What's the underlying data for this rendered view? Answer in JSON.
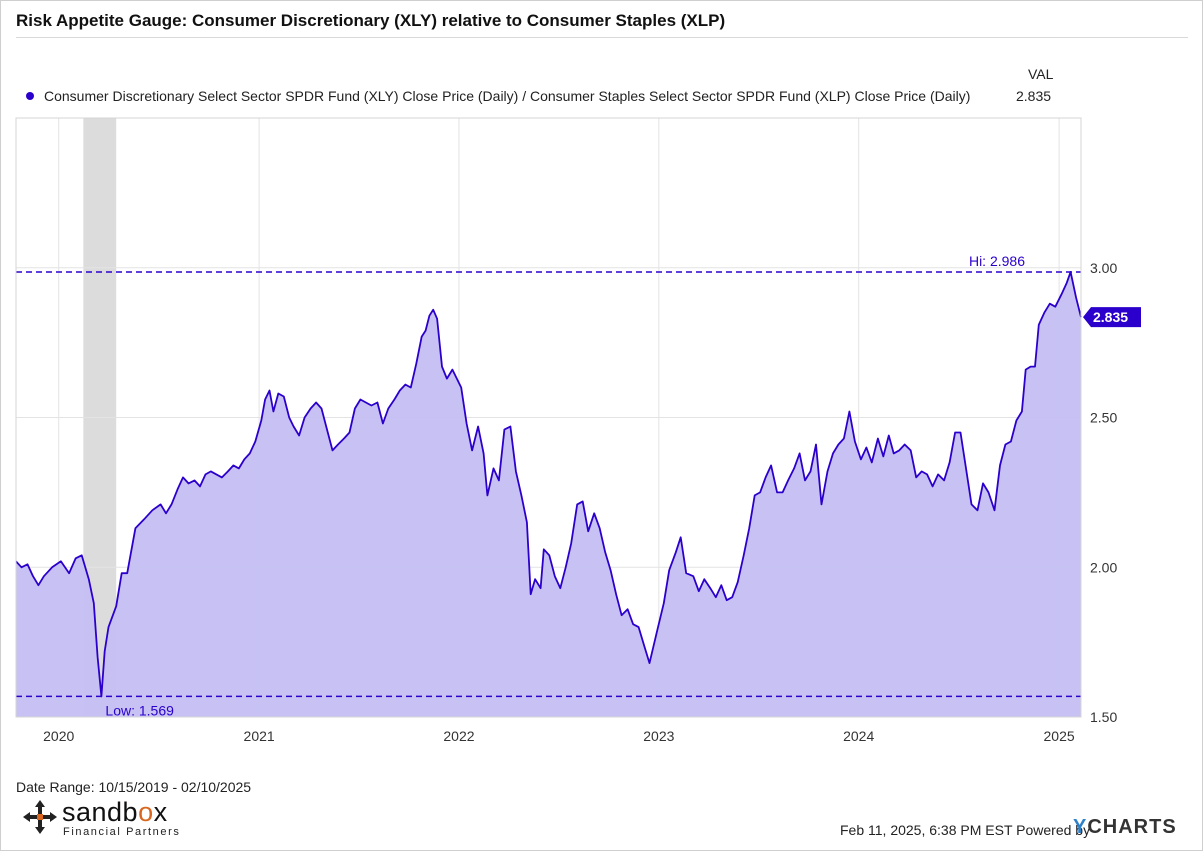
{
  "title": "Risk Appetite Gauge: Consumer Discretionary (XLY) relative to Consumer Staples (XLP)",
  "legend": {
    "header": "VAL",
    "series_label": "Consumer Discretionary Select Sector SPDR Fund (XLY) Close Price (Daily) / Consumer Staples Select Sector SPDR Fund (XLP) Close Price (Daily)",
    "value": "2.835"
  },
  "colors": {
    "line": "#2c00cc",
    "fill": "#c4bff2",
    "recession": "#dcdcdc",
    "grid": "#e3e3e3"
  },
  "chart_data": {
    "type": "area",
    "series": [
      {
        "name": "Consumer Discretionary Select Sector SPDR Fund (XLY) Close Price (Daily) / Consumer Staples Select Sector SPDR Fund (XLP) Close Price (Daily)",
        "points": [
          [
            "2019-10-15",
            2.02
          ],
          [
            "2019-10-25",
            2.0
          ],
          [
            "2019-11-05",
            2.01
          ],
          [
            "2019-11-15",
            1.97
          ],
          [
            "2019-11-25",
            1.94
          ],
          [
            "2019-12-05",
            1.97
          ],
          [
            "2019-12-20",
            2.0
          ],
          [
            "2020-01-05",
            2.02
          ],
          [
            "2020-01-20",
            1.98
          ],
          [
            "2020-02-01",
            2.03
          ],
          [
            "2020-02-12",
            2.04
          ],
          [
            "2020-02-25",
            1.96
          ],
          [
            "2020-03-05",
            1.88
          ],
          [
            "2020-03-12",
            1.7
          ],
          [
            "2020-03-19",
            1.569
          ],
          [
            "2020-03-25",
            1.72
          ],
          [
            "2020-04-01",
            1.8
          ],
          [
            "2020-04-15",
            1.87
          ],
          [
            "2020-04-25",
            1.98
          ],
          [
            "2020-05-05",
            1.98
          ],
          [
            "2020-05-20",
            2.13
          ],
          [
            "2020-06-05",
            2.16
          ],
          [
            "2020-06-20",
            2.19
          ],
          [
            "2020-07-05",
            2.21
          ],
          [
            "2020-07-15",
            2.18
          ],
          [
            "2020-07-25",
            2.21
          ],
          [
            "2020-08-05",
            2.26
          ],
          [
            "2020-08-15",
            2.3
          ],
          [
            "2020-08-25",
            2.28
          ],
          [
            "2020-09-05",
            2.29
          ],
          [
            "2020-09-15",
            2.27
          ],
          [
            "2020-09-25",
            2.31
          ],
          [
            "2020-10-05",
            2.32
          ],
          [
            "2020-10-15",
            2.31
          ],
          [
            "2020-10-25",
            2.3
          ],
          [
            "2020-11-05",
            2.32
          ],
          [
            "2020-11-15",
            2.34
          ],
          [
            "2020-11-25",
            2.33
          ],
          [
            "2020-12-05",
            2.36
          ],
          [
            "2020-12-15",
            2.38
          ],
          [
            "2020-12-25",
            2.42
          ],
          [
            "2021-01-05",
            2.49
          ],
          [
            "2021-01-12",
            2.56
          ],
          [
            "2021-01-20",
            2.59
          ],
          [
            "2021-01-27",
            2.52
          ],
          [
            "2021-02-05",
            2.58
          ],
          [
            "2021-02-15",
            2.57
          ],
          [
            "2021-02-25",
            2.5
          ],
          [
            "2021-03-05",
            2.47
          ],
          [
            "2021-03-15",
            2.44
          ],
          [
            "2021-03-25",
            2.5
          ],
          [
            "2021-04-05",
            2.53
          ],
          [
            "2021-04-15",
            2.55
          ],
          [
            "2021-04-25",
            2.53
          ],
          [
            "2021-05-05",
            2.46
          ],
          [
            "2021-05-15",
            2.39
          ],
          [
            "2021-05-25",
            2.41
          ],
          [
            "2021-06-05",
            2.43
          ],
          [
            "2021-06-15",
            2.45
          ],
          [
            "2021-06-25",
            2.53
          ],
          [
            "2021-07-05",
            2.56
          ],
          [
            "2021-07-15",
            2.55
          ],
          [
            "2021-07-25",
            2.54
          ],
          [
            "2021-08-05",
            2.55
          ],
          [
            "2021-08-15",
            2.48
          ],
          [
            "2021-08-25",
            2.53
          ],
          [
            "2021-09-05",
            2.56
          ],
          [
            "2021-09-15",
            2.59
          ],
          [
            "2021-09-25",
            2.61
          ],
          [
            "2021-10-05",
            2.6
          ],
          [
            "2021-10-15",
            2.68
          ],
          [
            "2021-10-25",
            2.77
          ],
          [
            "2021-11-01",
            2.79
          ],
          [
            "2021-11-08",
            2.84
          ],
          [
            "2021-11-15",
            2.86
          ],
          [
            "2021-11-22",
            2.83
          ],
          [
            "2021-12-01",
            2.67
          ],
          [
            "2021-12-10",
            2.63
          ],
          [
            "2021-12-20",
            2.66
          ],
          [
            "2022-01-05",
            2.6
          ],
          [
            "2022-01-15",
            2.48
          ],
          [
            "2022-01-25",
            2.39
          ],
          [
            "2022-02-05",
            2.47
          ],
          [
            "2022-02-15",
            2.38
          ],
          [
            "2022-02-22",
            2.24
          ],
          [
            "2022-03-05",
            2.33
          ],
          [
            "2022-03-15",
            2.29
          ],
          [
            "2022-03-25",
            2.46
          ],
          [
            "2022-04-05",
            2.47
          ],
          [
            "2022-04-15",
            2.32
          ],
          [
            "2022-04-25",
            2.24
          ],
          [
            "2022-05-05",
            2.15
          ],
          [
            "2022-05-12",
            1.91
          ],
          [
            "2022-05-20",
            1.96
          ],
          [
            "2022-05-30",
            1.93
          ],
          [
            "2022-06-05",
            2.06
          ],
          [
            "2022-06-15",
            2.04
          ],
          [
            "2022-06-25",
            1.97
          ],
          [
            "2022-07-05",
            1.93
          ],
          [
            "2022-07-15",
            2.0
          ],
          [
            "2022-07-25",
            2.08
          ],
          [
            "2022-08-05",
            2.21
          ],
          [
            "2022-08-15",
            2.22
          ],
          [
            "2022-08-25",
            2.12
          ],
          [
            "2022-09-05",
            2.18
          ],
          [
            "2022-09-15",
            2.13
          ],
          [
            "2022-09-25",
            2.05
          ],
          [
            "2022-10-05",
            1.99
          ],
          [
            "2022-10-15",
            1.91
          ],
          [
            "2022-10-25",
            1.84
          ],
          [
            "2022-11-05",
            1.86
          ],
          [
            "2022-11-15",
            1.81
          ],
          [
            "2022-11-25",
            1.8
          ],
          [
            "2022-12-05",
            1.74
          ],
          [
            "2022-12-15",
            1.68
          ],
          [
            "2022-12-28",
            1.78
          ],
          [
            "2023-01-10",
            1.88
          ],
          [
            "2023-01-20",
            1.99
          ],
          [
            "2023-02-01",
            2.05
          ],
          [
            "2023-02-10",
            2.1
          ],
          [
            "2023-02-20",
            1.98
          ],
          [
            "2023-03-05",
            1.97
          ],
          [
            "2023-03-15",
            1.92
          ],
          [
            "2023-03-25",
            1.96
          ],
          [
            "2023-04-05",
            1.93
          ],
          [
            "2023-04-15",
            1.9
          ],
          [
            "2023-04-25",
            1.94
          ],
          [
            "2023-05-05",
            1.89
          ],
          [
            "2023-05-15",
            1.9
          ],
          [
            "2023-05-25",
            1.95
          ],
          [
            "2023-06-05",
            2.04
          ],
          [
            "2023-06-15",
            2.13
          ],
          [
            "2023-06-25",
            2.24
          ],
          [
            "2023-07-05",
            2.25
          ],
          [
            "2023-07-15",
            2.3
          ],
          [
            "2023-07-25",
            2.34
          ],
          [
            "2023-08-05",
            2.25
          ],
          [
            "2023-08-15",
            2.25
          ],
          [
            "2023-08-25",
            2.29
          ],
          [
            "2023-09-05",
            2.33
          ],
          [
            "2023-09-15",
            2.38
          ],
          [
            "2023-09-25",
            2.29
          ],
          [
            "2023-10-05",
            2.32
          ],
          [
            "2023-10-15",
            2.41
          ],
          [
            "2023-10-25",
            2.21
          ],
          [
            "2023-11-05",
            2.32
          ],
          [
            "2023-11-15",
            2.38
          ],
          [
            "2023-11-25",
            2.41
          ],
          [
            "2023-12-05",
            2.43
          ],
          [
            "2023-12-15",
            2.52
          ],
          [
            "2023-12-25",
            2.42
          ],
          [
            "2024-01-05",
            2.36
          ],
          [
            "2024-01-15",
            2.4
          ],
          [
            "2024-01-25",
            2.35
          ],
          [
            "2024-02-05",
            2.43
          ],
          [
            "2024-02-15",
            2.37
          ],
          [
            "2024-02-25",
            2.44
          ],
          [
            "2024-03-05",
            2.38
          ],
          [
            "2024-03-15",
            2.39
          ],
          [
            "2024-03-25",
            2.41
          ],
          [
            "2024-04-05",
            2.39
          ],
          [
            "2024-04-15",
            2.3
          ],
          [
            "2024-04-25",
            2.32
          ],
          [
            "2024-05-05",
            2.31
          ],
          [
            "2024-05-15",
            2.27
          ],
          [
            "2024-05-25",
            2.31
          ],
          [
            "2024-06-05",
            2.29
          ],
          [
            "2024-06-15",
            2.35
          ],
          [
            "2024-06-25",
            2.45
          ],
          [
            "2024-07-05",
            2.45
          ],
          [
            "2024-07-15",
            2.33
          ],
          [
            "2024-07-25",
            2.21
          ],
          [
            "2024-08-05",
            2.19
          ],
          [
            "2024-08-15",
            2.28
          ],
          [
            "2024-08-25",
            2.25
          ],
          [
            "2024-09-05",
            2.19
          ],
          [
            "2024-09-15",
            2.34
          ],
          [
            "2024-09-25",
            2.41
          ],
          [
            "2024-10-05",
            2.42
          ],
          [
            "2024-10-15",
            2.49
          ],
          [
            "2024-10-25",
            2.52
          ],
          [
            "2024-11-01",
            2.66
          ],
          [
            "2024-11-10",
            2.67
          ],
          [
            "2024-11-18",
            2.67
          ],
          [
            "2024-11-25",
            2.81
          ],
          [
            "2024-12-05",
            2.85
          ],
          [
            "2024-12-15",
            2.88
          ],
          [
            "2024-12-25",
            2.87
          ],
          [
            "2025-01-05",
            2.91
          ],
          [
            "2025-01-15",
            2.95
          ],
          [
            "2025-01-22",
            2.986
          ],
          [
            "2025-02-01",
            2.9
          ],
          [
            "2025-02-10",
            2.835
          ]
        ]
      }
    ],
    "ylim": [
      1.5,
      3.5
    ],
    "yticks": [
      1.5,
      2.0,
      2.5,
      3.0
    ],
    "ytick_labels": [
      "1.50",
      "2.00",
      "2.50",
      "3.00"
    ],
    "xlim": [
      "2019-10-15",
      "2025-02-10"
    ],
    "xticks": [
      "2020-01-01",
      "2021-01-01",
      "2022-01-01",
      "2023-01-01",
      "2024-01-01",
      "2025-01-01"
    ],
    "xtick_labels": [
      "2020",
      "2021",
      "2022",
      "2023",
      "2024",
      "2025"
    ],
    "high": {
      "value": 2.986,
      "label": "Hi: 2.986"
    },
    "low": {
      "value": 1.569,
      "label": "Low: 1.569"
    },
    "last": {
      "value": 2.835,
      "label": "2.835"
    },
    "recession_band": [
      "2020-02-15",
      "2020-04-15"
    ],
    "grid": true
  },
  "date_range": "Date Range: 10/15/2019 - 02/10/2025",
  "logo": {
    "word_main": "sandb",
    "word_accent": "o",
    "word_end": "x",
    "sub": "Financial Partners"
  },
  "footer": {
    "timestamp": "Feb 11, 2025, 6:38 PM EST Powered by",
    "brand_y": "Y",
    "brand_rest": "CHARTS"
  }
}
